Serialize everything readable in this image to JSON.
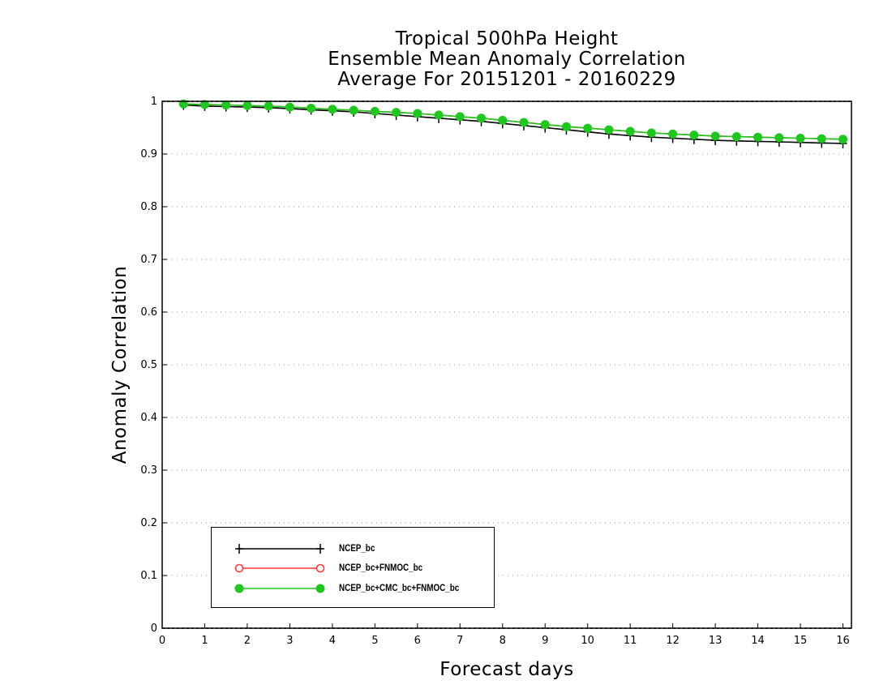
{
  "title_lines": [
    "Tropical 500hPa Height",
    "Ensemble Mean Anomaly Correlation",
    "Average For 20151201 - 20160229"
  ],
  "chart_data": {
    "type": "line",
    "title": "Tropical 500hPa Height\nEnsemble Mean Anomaly Correlation\nAverage For 20151201 - 20160229",
    "xlabel": "Forecast days",
    "ylabel": "Anomaly Correlation",
    "xlim": [
      0,
      16.2
    ],
    "ylim": [
      0,
      1
    ],
    "x_ticks": [
      0,
      1,
      2,
      3,
      4,
      5,
      6,
      7,
      8,
      9,
      10,
      11,
      12,
      13,
      14,
      15,
      16
    ],
    "y_ticks": [
      0,
      0.1,
      0.2,
      0.3,
      0.4,
      0.5,
      0.6,
      0.7,
      0.8,
      0.9,
      1
    ],
    "y_tick_labels": [
      "0",
      "0.1",
      "0.2",
      "0.3",
      "0.4",
      "0.5",
      "0.6",
      "0.7",
      "0.8",
      "0.9",
      "1"
    ],
    "grid": "horizontal-dotted",
    "legend_position": "bottom-left",
    "x": [
      0.5,
      1,
      1.5,
      2,
      2.5,
      3,
      3.5,
      4,
      4.5,
      5,
      5.5,
      6,
      6.5,
      7,
      7.5,
      8,
      8.5,
      9,
      9.5,
      10,
      10.5,
      11,
      11.5,
      12,
      12.5,
      13,
      13.5,
      14,
      14.5,
      15,
      15.5,
      16
    ],
    "series": [
      {
        "name": "NCEP_bc",
        "color": "#000000",
        "marker": "plus",
        "values": [
          0.993,
          0.991,
          0.99,
          0.989,
          0.988,
          0.986,
          0.984,
          0.982,
          0.98,
          0.977,
          0.974,
          0.971,
          0.968,
          0.965,
          0.962,
          0.958,
          0.954,
          0.95,
          0.946,
          0.942,
          0.938,
          0.935,
          0.932,
          0.93,
          0.928,
          0.926,
          0.925,
          0.924,
          0.923,
          0.922,
          0.921,
          0.92
        ]
      },
      {
        "name": "NCEP_bc+FNMOC_bc",
        "color": "#ff3333",
        "marker": "open-circle",
        "values": [
          0.995,
          0.994,
          0.993,
          0.992,
          0.991,
          0.989,
          0.987,
          0.985,
          0.983,
          0.981,
          0.979,
          0.977,
          0.974,
          0.971,
          0.968,
          0.964,
          0.96,
          0.956,
          0.952,
          0.949,
          0.946,
          0.943,
          0.94,
          0.938,
          0.936,
          0.934,
          0.933,
          0.932,
          0.931,
          0.93,
          0.929,
          0.928
        ]
      },
      {
        "name": "NCEP_bc+CMC_bc+FNMOC_bc",
        "color": "#1ec81e",
        "marker": "filled-circle",
        "values": [
          0.995,
          0.994,
          0.993,
          0.992,
          0.991,
          0.989,
          0.987,
          0.985,
          0.983,
          0.981,
          0.979,
          0.977,
          0.974,
          0.971,
          0.968,
          0.964,
          0.96,
          0.956,
          0.952,
          0.949,
          0.946,
          0.943,
          0.94,
          0.938,
          0.936,
          0.934,
          0.933,
          0.932,
          0.931,
          0.93,
          0.929,
          0.928
        ]
      }
    ]
  }
}
